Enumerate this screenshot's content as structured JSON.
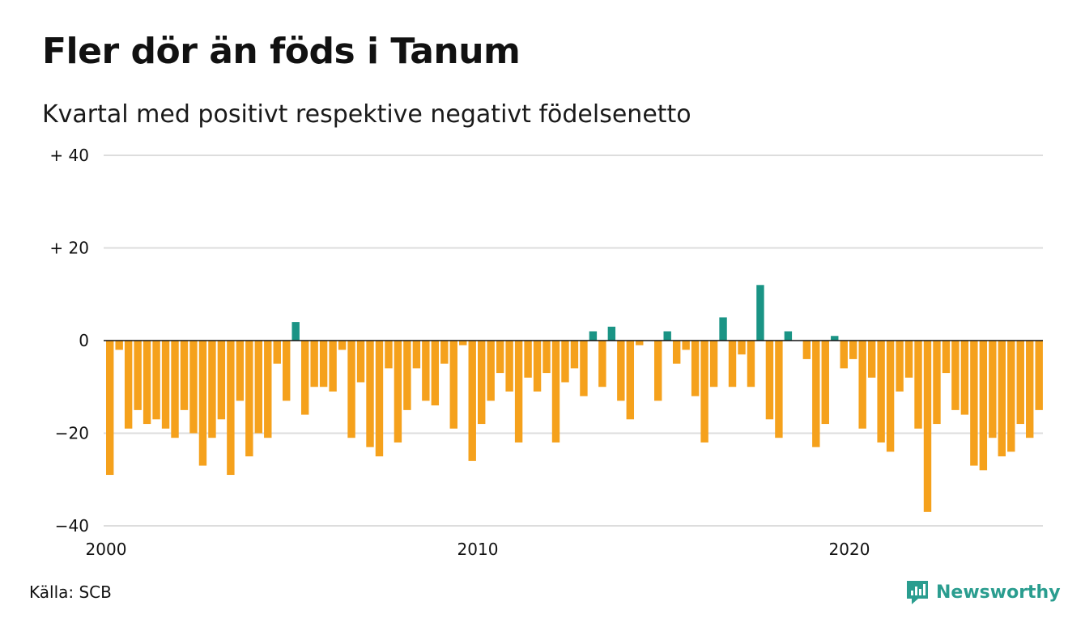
{
  "header": {
    "title": "Fler dör än föds i Tanum",
    "subtitle": "Kvartal med positivt respektive negativt födelsenetto"
  },
  "footer": {
    "source": "Källa: SCB",
    "brand": "Newsworthy",
    "brand_icon": "newsworthy-logo-icon"
  },
  "colors": {
    "positive": "#1a9485",
    "negative": "#f5a11c",
    "grid": "#dddddd",
    "zero_line": "#111111",
    "brand": "#2a9d8f"
  },
  "chart_data": {
    "type": "bar",
    "title": "Fler dör än föds i Tanum",
    "subtitle": "Kvartal med positivt respektive negativt födelsenetto",
    "xlabel": "",
    "ylabel": "",
    "ylim": [
      -40,
      40
    ],
    "yticks": [
      {
        "value": 40,
        "label": "+ 40"
      },
      {
        "value": 20,
        "label": "+ 20"
      },
      {
        "value": 0,
        "label": "0"
      },
      {
        "value": -20,
        "label": "−20"
      },
      {
        "value": -40,
        "label": "−40"
      }
    ],
    "xticks": [
      {
        "value": 2000,
        "label": "2000"
      },
      {
        "value": 2010,
        "label": "2010"
      },
      {
        "value": 2020,
        "label": "2020"
      }
    ],
    "xlim": [
      2000,
      2025.5
    ],
    "grid": true,
    "start_year": 2000,
    "start_quarter": 1,
    "values": [
      -29,
      -2,
      -19,
      -15,
      -18,
      -17,
      -19,
      -21,
      -15,
      -20,
      -27,
      -21,
      -17,
      -29,
      -13,
      -25,
      -20,
      -21,
      -5,
      -13,
      4,
      -16,
      -10,
      -10,
      -11,
      -2,
      -21,
      -9,
      -23,
      -25,
      -6,
      -22,
      -15,
      -6,
      -13,
      -14,
      -5,
      -19,
      -1,
      -26,
      -18,
      -13,
      -7,
      -11,
      -22,
      -8,
      -11,
      -7,
      -22,
      -9,
      -6,
      -12,
      2,
      -10,
      3,
      -13,
      -17,
      -1,
      0,
      -13,
      2,
      -5,
      -2,
      -12,
      -22,
      -10,
      5,
      -10,
      -3,
      -10,
      12,
      -17,
      -21,
      2,
      0,
      -4,
      -23,
      -18,
      1,
      -6,
      -4,
      -19,
      -8,
      -22,
      -24,
      -11,
      -8,
      -19,
      -37,
      -18,
      -7,
      -15,
      -16,
      -27,
      -28,
      -21,
      -25,
      -24,
      -18,
      -21,
      -15
    ]
  }
}
